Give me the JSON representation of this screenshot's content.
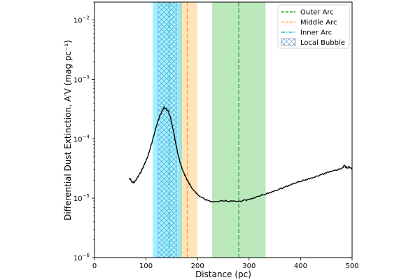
{
  "chart_data": {
    "type": "line",
    "xlabel": "Distance (pc)",
    "ylabel": "Differential Dust Extinction, A′V (mag pc⁻¹)",
    "xlim": [
      0,
      500
    ],
    "ylim": [
      1e-06,
      0.02
    ],
    "yscale": "log",
    "x_ticks": [
      0,
      100,
      200,
      300,
      400,
      500
    ],
    "x_tick_labels": [
      "0",
      "100",
      "200",
      "300",
      "400",
      "500"
    ],
    "y_ticks": [
      1e-06,
      1e-05,
      0.0001,
      0.001,
      0.01
    ],
    "y_tick_labels": [
      {
        "base": "10",
        "exp": "−6"
      },
      {
        "base": "10",
        "exp": "−5"
      },
      {
        "base": "10",
        "exp": "−4"
      },
      {
        "base": "10",
        "exp": "−3"
      },
      {
        "base": "10",
        "exp": "−2"
      }
    ],
    "series": [
      {
        "name": "extinction",
        "color": "#000000",
        "x": [
          68,
          72,
          76,
          80,
          84,
          88,
          92,
          96,
          100,
          104,
          108,
          112,
          116,
          120,
          124,
          128,
          132,
          134,
          136,
          138,
          140,
          142,
          144,
          146,
          148,
          150,
          154,
          158,
          162,
          166,
          170,
          174,
          178,
          182,
          186,
          190,
          195,
          200,
          210,
          220,
          230,
          240,
          250,
          260,
          270,
          280,
          290,
          300,
          310,
          320,
          330,
          340,
          350,
          360,
          370,
          380,
          390,
          400,
          410,
          420,
          430,
          440,
          450,
          460,
          470,
          480,
          485,
          490,
          495,
          500
        ],
        "y": [
          2.2e-05,
          1.9e-05,
          1.8e-05,
          2e-05,
          2.3e-05,
          2.6e-05,
          3e-05,
          3.6e-05,
          4.3e-05,
          5.2e-05,
          6.8e-05,
          9e-05,
          0.00012,
          0.00016,
          0.00021,
          0.00026,
          0.0003,
          0.00033,
          0.00033,
          0.00032,
          0.00031,
          0.0003,
          0.00028,
          0.00025,
          0.00022,
          0.00018,
          0.000125,
          8e-05,
          5.5e-05,
          4e-05,
          3.1e-05,
          2.6e-05,
          2.2e-05,
          1.9e-05,
          1.65e-05,
          1.45e-05,
          1.3e-05,
          1.15e-05,
          1.02e-05,
          9.2e-06,
          8.6e-06,
          8.7e-06,
          9e-06,
          8.8e-06,
          9.1e-06,
          8.9e-06,
          9.3e-06,
          9.5e-06,
          1e-05,
          1.08e-05,
          1.15e-05,
          1.25e-05,
          1.35e-05,
          1.45e-05,
          1.55e-05,
          1.65e-05,
          1.78e-05,
          1.9e-05,
          2.05e-05,
          2.2e-05,
          2.35e-05,
          2.5e-05,
          2.65e-05,
          2.8e-05,
          2.95e-05,
          3.15e-05,
          3.6e-05,
          3.2e-05,
          3.35e-05,
          3.05e-05
        ]
      }
    ],
    "bands": [
      {
        "name": "Outer Arc",
        "xmin": 228,
        "xmax": 332,
        "center": 280,
        "color": "#66cc66",
        "line_style": "dashed",
        "line_color": "#2ca02c"
      },
      {
        "name": "Middle Arc",
        "xmin": 163,
        "xmax": 200,
        "center": 180,
        "color": "#ffc266",
        "line_style": "dashed",
        "line_color": "#ff9f1a"
      },
      {
        "name": "Inner Arc",
        "xmin": 113,
        "xmax": 170,
        "center": 145,
        "color": "#33e0ff",
        "line_style": "dashdot",
        "line_color": "#17becf"
      },
      {
        "name": "Local Bubble",
        "xmin": 123,
        "xmax": 160,
        "hatch": "cross",
        "color": "#6bb8e8"
      }
    ],
    "legend": {
      "placement": "top-right",
      "entries": [
        {
          "label": "Outer Arc",
          "style": "dashed",
          "color": "#2ca02c"
        },
        {
          "label": "Middle Arc",
          "style": "dashed",
          "color": "#ff9f1a"
        },
        {
          "label": "Inner Arc",
          "style": "dashdot",
          "color": "#17becf"
        },
        {
          "label": "Local Bubble",
          "style": "hatch",
          "color": "#888888"
        }
      ]
    }
  }
}
